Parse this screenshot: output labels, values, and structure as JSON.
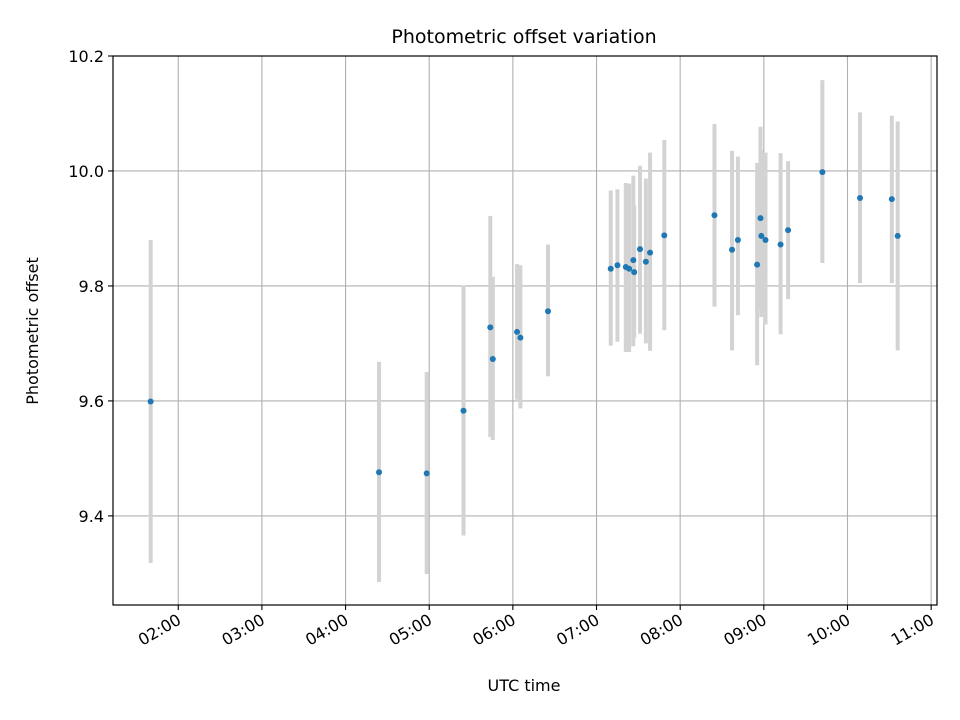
{
  "chart_data": {
    "type": "scatter",
    "title": "Photometric offset variation",
    "xlabel": "UTC time",
    "ylabel": "Photometric offset",
    "xlim": [
      1.22,
      11.07
    ],
    "ylim": [
      9.245,
      10.2
    ],
    "grid": true,
    "legend": "none",
    "x_ticks": [
      {
        "value": 2.0,
        "label": "02:00"
      },
      {
        "value": 3.0,
        "label": "03:00"
      },
      {
        "value": 4.0,
        "label": "04:00"
      },
      {
        "value": 5.0,
        "label": "05:00"
      },
      {
        "value": 6.0,
        "label": "06:00"
      },
      {
        "value": 7.0,
        "label": "07:00"
      },
      {
        "value": 8.0,
        "label": "08:00"
      },
      {
        "value": 9.0,
        "label": "09:00"
      },
      {
        "value": 10.0,
        "label": "10:00"
      },
      {
        "value": 11.0,
        "label": "11:00"
      }
    ],
    "y_ticks": [
      {
        "value": 9.4,
        "label": "9.4"
      },
      {
        "value": 9.6,
        "label": "9.6"
      },
      {
        "value": 9.8,
        "label": "9.8"
      },
      {
        "value": 10.0,
        "label": "10.0"
      },
      {
        "value": 10.2,
        "label": "10.2"
      }
    ],
    "colors": {
      "marker": "#1f77b4",
      "errorbar": "#d3d3d3",
      "grid": "#b0b0b0",
      "axis": "#000000"
    },
    "points": [
      {
        "t": 1.67,
        "y": 9.599,
        "lo": 9.318,
        "hi": 9.88
      },
      {
        "t": 4.4,
        "y": 9.476,
        "lo": 9.285,
        "hi": 9.668
      },
      {
        "t": 4.97,
        "y": 9.474,
        "lo": 9.299,
        "hi": 9.65
      },
      {
        "t": 5.41,
        "y": 9.583,
        "lo": 9.366,
        "hi": 9.801
      },
      {
        "t": 5.73,
        "y": 9.728,
        "lo": 9.537,
        "hi": 9.922
      },
      {
        "t": 5.76,
        "y": 9.673,
        "lo": 9.532,
        "hi": 9.816
      },
      {
        "t": 6.05,
        "y": 9.72,
        "lo": 9.602,
        "hi": 9.838
      },
      {
        "t": 6.09,
        "y": 9.71,
        "lo": 9.587,
        "hi": 9.836
      },
      {
        "t": 6.42,
        "y": 9.756,
        "lo": 9.643,
        "hi": 9.872
      },
      {
        "t": 7.17,
        "y": 9.83,
        "lo": 9.696,
        "hi": 9.966
      },
      {
        "t": 7.25,
        "y": 9.836,
        "lo": 9.703,
        "hi": 9.968
      },
      {
        "t": 7.35,
        "y": 9.833,
        "lo": 9.685,
        "hi": 9.979
      },
      {
        "t": 7.39,
        "y": 9.83,
        "lo": 9.685,
        "hi": 9.978
      },
      {
        "t": 7.44,
        "y": 9.845,
        "lo": 9.695,
        "hi": 9.992
      },
      {
        "t": 7.45,
        "y": 9.824,
        "lo": 9.71,
        "hi": 9.94
      },
      {
        "t": 7.52,
        "y": 9.864,
        "lo": 9.717,
        "hi": 10.009
      },
      {
        "t": 7.59,
        "y": 9.842,
        "lo": 9.7,
        "hi": 9.987
      },
      {
        "t": 7.64,
        "y": 9.858,
        "lo": 9.687,
        "hi": 10.032
      },
      {
        "t": 7.81,
        "y": 9.888,
        "lo": 9.723,
        "hi": 10.054
      },
      {
        "t": 8.41,
        "y": 9.923,
        "lo": 9.764,
        "hi": 10.082
      },
      {
        "t": 8.62,
        "y": 9.863,
        "lo": 9.688,
        "hi": 10.035
      },
      {
        "t": 8.69,
        "y": 9.88,
        "lo": 9.749,
        "hi": 10.025
      },
      {
        "t": 8.92,
        "y": 9.837,
        "lo": 9.662,
        "hi": 10.014
      },
      {
        "t": 8.96,
        "y": 9.918,
        "lo": 9.758,
        "hi": 10.077
      },
      {
        "t": 8.97,
        "y": 9.887,
        "lo": 9.746,
        "hi": 10.036
      },
      {
        "t": 9.02,
        "y": 9.88,
        "lo": 9.733,
        "hi": 10.032
      },
      {
        "t": 9.2,
        "y": 9.872,
        "lo": 9.716,
        "hi": 10.031
      },
      {
        "t": 9.29,
        "y": 9.897,
        "lo": 9.777,
        "hi": 10.017
      },
      {
        "t": 9.7,
        "y": 9.998,
        "lo": 9.84,
        "hi": 10.158
      },
      {
        "t": 10.15,
        "y": 9.953,
        "lo": 9.805,
        "hi": 10.102
      },
      {
        "t": 10.53,
        "y": 9.951,
        "lo": 9.805,
        "hi": 10.096
      },
      {
        "t": 10.6,
        "y": 9.887,
        "lo": 9.688,
        "hi": 10.086
      }
    ]
  }
}
